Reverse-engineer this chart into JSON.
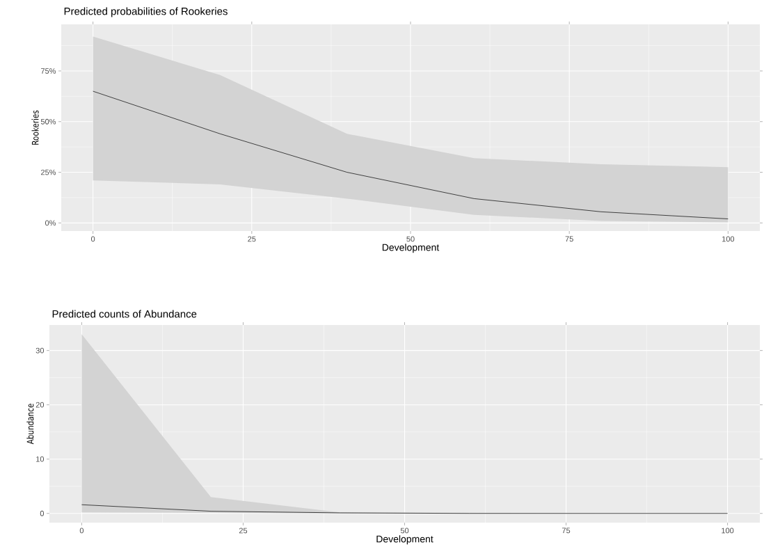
{
  "chart_data": [
    {
      "type": "line",
      "title": "Predicted probabilities of Rookeries",
      "xlabel": "Development",
      "ylabel": "Rookeries",
      "xlim": [
        -5,
        105
      ],
      "ylim": [
        -4,
        98
      ],
      "xticks": [
        0,
        25,
        50,
        75,
        100
      ],
      "yticks": [
        {
          "value": 0,
          "label": "0%"
        },
        {
          "value": 25,
          "label": "25%"
        },
        {
          "value": 50,
          "label": "50%"
        },
        {
          "value": 75,
          "label": "75%"
        }
      ],
      "grid": true,
      "series": [
        {
          "color": "#000000",
          "x": [
            0,
            20,
            40,
            60,
            80,
            100
          ],
          "values": [
            65,
            44,
            25,
            12,
            5.5,
            2
          ],
          "lower": [
            21,
            19,
            12,
            4,
            1,
            0.3
          ],
          "upper": [
            92,
            73,
            44,
            32,
            29,
            27.5
          ]
        }
      ]
    },
    {
      "type": "line",
      "title": "Predicted counts of Abundance",
      "xlabel": "Development",
      "ylabel": "Abundance",
      "xlim": [
        -5,
        105
      ],
      "ylim": [
        -1.7,
        34.7
      ],
      "xticks": [
        0,
        25,
        50,
        75,
        100
      ],
      "yticks": [
        0,
        10,
        20,
        30
      ],
      "grid": true,
      "series": [
        {
          "color": "#000000",
          "x": [
            0,
            20,
            40,
            60,
            80,
            100
          ],
          "values": [
            1.6,
            0.4,
            0.1,
            0,
            0,
            0
          ],
          "lower": [
            0.2,
            0.1,
            0,
            0,
            0,
            0
          ],
          "upper": [
            33,
            3,
            0.2,
            0.1,
            0,
            0
          ]
        }
      ]
    }
  ]
}
